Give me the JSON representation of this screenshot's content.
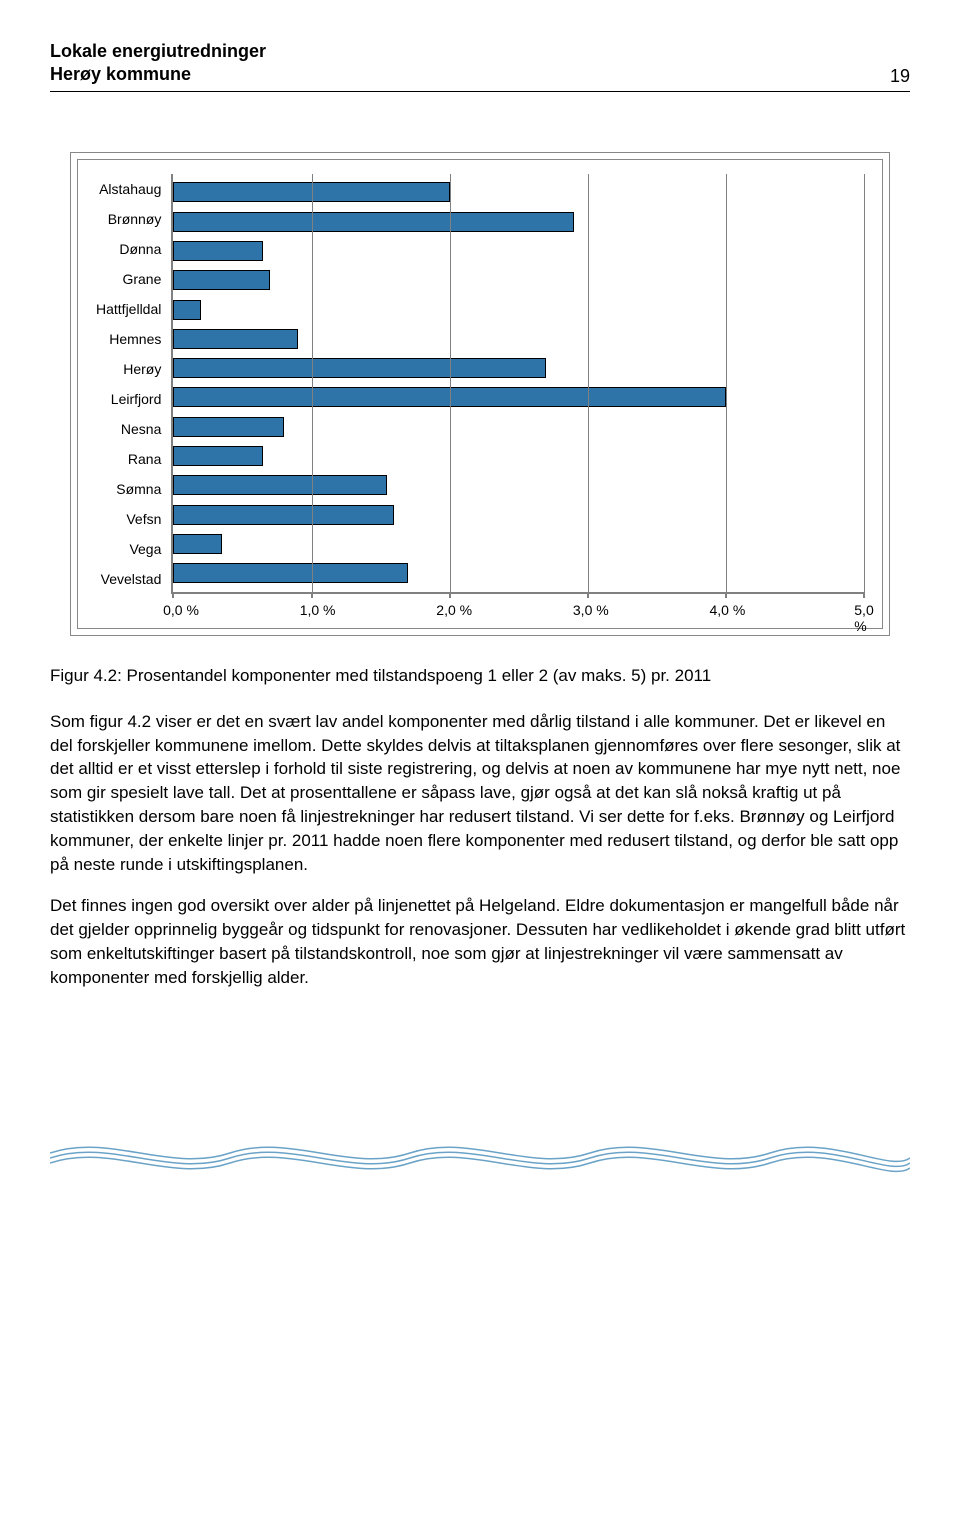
{
  "header": {
    "line1": "Lokale energiutredninger",
    "line2": "Herøy kommune",
    "page_number": "19"
  },
  "chart": {
    "type": "bar-horizontal",
    "categories": [
      "Alstahaug",
      "Brønnøy",
      "Dønna",
      "Grane",
      "Hattfjelldal",
      "Hemnes",
      "Herøy",
      "Leirfjord",
      "Nesna",
      "Rana",
      "Sømna",
      "Vefsn",
      "Vega",
      "Vevelstad"
    ],
    "values": [
      2.0,
      2.9,
      0.65,
      0.7,
      0.2,
      0.9,
      2.7,
      4.0,
      0.8,
      0.65,
      1.55,
      1.6,
      0.35,
      1.7
    ],
    "bar_color": "#2e74a8",
    "bar_border": "#000000",
    "x_ticks": [
      0.0,
      1.0,
      2.0,
      3.0,
      4.0,
      5.0
    ],
    "x_tick_labels": [
      "0,0 %",
      "1,0 %",
      "2,0 %",
      "3,0 %",
      "4,0 %",
      "5,0 %"
    ],
    "x_max": 5.0,
    "grid_color": "#808080",
    "background": "#ffffff",
    "label_fontsize": 14
  },
  "caption": "Figur 4.2: Prosentandel komponenter med tilstandspoeng 1 eller 2 (av maks. 5) pr. 2011",
  "paragraphs": [
    "Som figur 4.2 viser er det en svært lav andel komponenter med dårlig tilstand i alle kommuner. Det er likevel en del forskjeller kommunene imellom. Dette skyldes delvis at tiltaksplanen gjennomføres over flere sesonger, slik at det alltid er et visst etterslep i forhold til siste registrering, og delvis at noen av kommunene har mye nytt nett, noe som gir spesielt lave tall. Det at prosenttallene er såpass lave, gjør også at det kan slå nokså kraftig ut på statistikken dersom bare noen få linjestrekninger har redusert tilstand. Vi ser dette for f.eks. Brønnøy og Leirfjord kommuner, der enkelte linjer pr. 2011 hadde noen flere komponenter med redusert tilstand, og derfor ble satt opp på neste runde i utskiftingsplanen.",
    "Det finnes ingen god oversikt over alder på linjenettet på Helgeland. Eldre dokumentasjon er mangelfull både når det gjelder opprinnelig byggeår og tidspunkt for renovasjoner. Dessuten har vedlikeholdet i økende grad blitt utført som enkeltutskiftinger basert på tilstands­kontroll, noe som gjør at linjestrekninger vil være sammensatt av komponenter med forskjellig alder."
  ],
  "footer_wave": {
    "stroke": "#6aa3c7",
    "stroke_width": 1.5
  }
}
